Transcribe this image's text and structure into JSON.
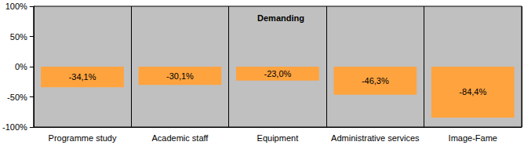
{
  "chart_data": {
    "type": "bar",
    "title": "Demanding",
    "categories": [
      "Programme study",
      "Academic staff",
      "Equipment",
      "Administrative services",
      "Image-Fame"
    ],
    "values": [
      -34.1,
      -30.1,
      -23.0,
      -46.3,
      -84.4
    ],
    "value_labels": [
      "-34,1%",
      "-30,1%",
      "-23,0%",
      "-46,3%",
      "-84,4%"
    ],
    "color": "#ffa33f",
    "ylim": [
      -100,
      100
    ],
    "yticks": [
      {
        "value": -100,
        "label": "-100%"
      },
      {
        "value": -50,
        "label": "-50%"
      },
      {
        "value": 0,
        "label": "0%"
      },
      {
        "value": 50,
        "label": "50%"
      },
      {
        "value": 100,
        "label": "100%"
      }
    ],
    "grid": true,
    "data_labels": true
  }
}
